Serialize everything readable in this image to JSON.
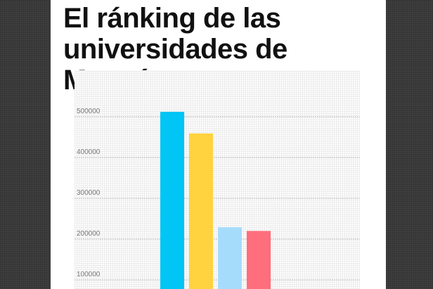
{
  "page": {
    "title": "El ránking de las universidades de Moscú"
  },
  "colors": {
    "background": "#3a3a3a",
    "card": "#ffffff",
    "gridline": "#bdbdbd",
    "tick_text": "#777777"
  },
  "chart_data": {
    "type": "bar",
    "title": "El ránking de las universidades de Moscú",
    "xlabel": "",
    "ylabel": "",
    "ylim": [
      0,
      550000
    ],
    "yticks": [
      100000,
      200000,
      300000,
      400000,
      500000
    ],
    "ytick_labels": [
      "100000",
      "200000",
      "300000",
      "400000",
      "500000"
    ],
    "grid": true,
    "legend": "none",
    "categories": [
      "",
      "",
      "",
      ""
    ],
    "values": [
      512000,
      459000,
      229000,
      220000
    ],
    "bar_colors": [
      "#00c5f5",
      "#ffd23f",
      "#a6dcfb",
      "#ff6e7c"
    ]
  }
}
